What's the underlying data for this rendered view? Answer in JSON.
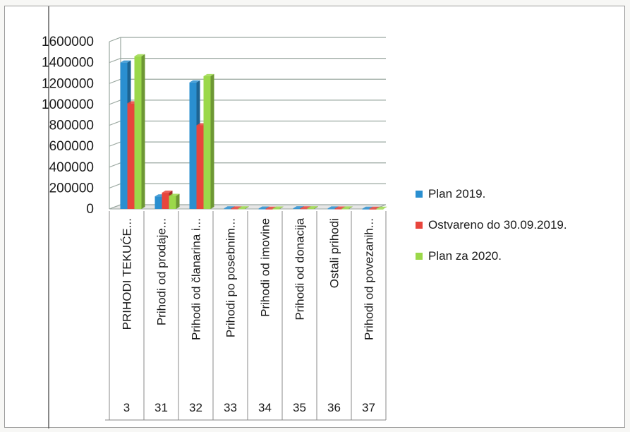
{
  "chart_data": {
    "type": "bar",
    "title": "",
    "xlabel": "",
    "ylabel": "",
    "ylim": [
      0,
      1600000
    ],
    "yticks": [
      0,
      200000,
      400000,
      600000,
      800000,
      1000000,
      1200000,
      1400000,
      1600000
    ],
    "grid": true,
    "legend_position": "right",
    "categories": [
      "PRIHODI TEKUĆE...",
      "Prihodi od prodaje...",
      "Prihodi od članarina i...",
      "Prihodi po posebnim...",
      "Prihodi od imovine",
      "Prihodi od donacija",
      "Ostali prihodi",
      "Prihodi od povezanih..."
    ],
    "category_codes": [
      "3",
      "31",
      "32",
      "33",
      "34",
      "35",
      "36",
      "37"
    ],
    "series": [
      {
        "name": "Plan 2019.",
        "color": "#2a8fd0",
        "values": [
          1400000,
          120000,
          1210000,
          5000,
          3000,
          6000,
          4000,
          2000
        ]
      },
      {
        "name": "Ostvareno do 30.09.2019.",
        "color": "#e8453c",
        "values": [
          1010000,
          155000,
          800000,
          4000,
          2000,
          5000,
          3000,
          1500
        ]
      },
      {
        "name": "Plan za 2020.",
        "color": "#9bd84a",
        "values": [
          1460000,
          125000,
          1270000,
          5000,
          3000,
          6000,
          4000,
          2000
        ]
      }
    ]
  }
}
